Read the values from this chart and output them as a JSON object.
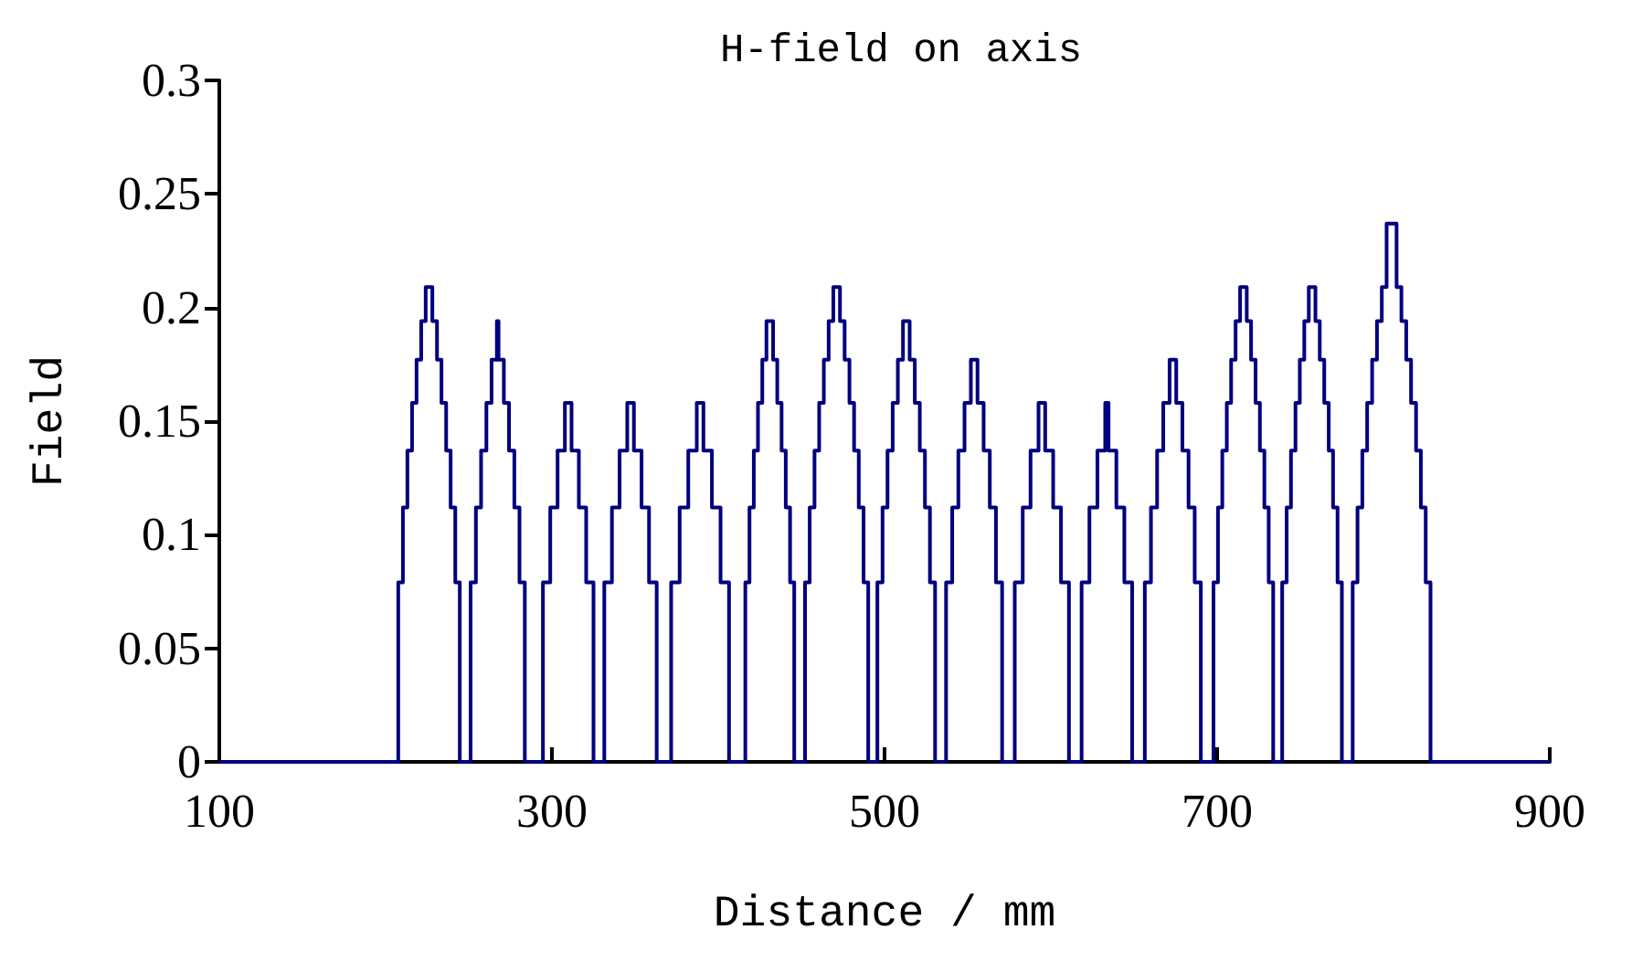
{
  "chart_data": {
    "type": "step",
    "title": "H-field on axis",
    "xlabel": "Distance / mm",
    "ylabel": "Field",
    "xlim": [
      100,
      900
    ],
    "xticks": [
      100,
      300,
      500,
      700,
      900
    ],
    "ylim": [
      0,
      0.3
    ],
    "yticks": [
      0,
      0.05,
      0.1,
      0.15,
      0.2,
      0.25,
      0.3
    ],
    "grid": false,
    "marker": "none",
    "line_style": "solid",
    "series": [
      {
        "color": "#000080",
        "x": [
          100,
          207.6,
          210.4,
          213.1,
          215.9,
          218.6,
          221.4,
          224.1,
          228.1,
          230.9,
          233.6,
          236.4,
          239.1,
          241.9,
          244.6,
          251.1,
          254.3,
          257.4,
          260.6,
          263.7,
          266.9,
          267.9,
          271.1,
          274.2,
          277.4,
          280.5,
          283.7,
          294.6,
          299.0,
          303.4,
          307.8,
          311.8,
          316.2,
          320.6,
          325.0,
          331.5,
          336.1,
          340.7,
          345.3,
          349.3,
          353.9,
          358.4,
          363.0,
          371.7,
          376.8,
          382.0,
          387.1,
          391.1,
          396.2,
          401.4,
          406.5,
          416.3,
          418.8,
          421.4,
          423.9,
          426.5,
          429.0,
          433.0,
          435.5,
          438.1,
          440.6,
          443.2,
          445.7,
          452.2,
          455.0,
          457.9,
          460.7,
          463.5,
          466.4,
          469.2,
          473.2,
          476.0,
          478.9,
          481.7,
          484.5,
          487.4,
          490.2,
          495.7,
          498.8,
          501.8,
          504.9,
          508.0,
          511.1,
          515.1,
          518.2,
          521.2,
          524.3,
          527.3,
          530.4,
          537.0,
          540.7,
          544.4,
          548.1,
          551.9,
          555.9,
          559.6,
          563.3,
          567.0,
          570.7,
          578.3,
          583.1,
          587.8,
          592.6,
          596.6,
          601.4,
          606.1,
          610.9,
          618.5,
          623.2,
          628.0,
          632.7,
          634.7,
          639.4,
          644.2,
          648.9,
          656.5,
          660.2,
          663.9,
          667.6,
          671.4,
          675.4,
          679.1,
          682.8,
          686.5,
          690.2,
          697.8,
          700.5,
          703.1,
          705.8,
          708.4,
          711.1,
          713.8,
          717.8,
          720.4,
          723.1,
          725.7,
          728.4,
          731.0,
          733.7,
          739.1,
          741.8,
          744.4,
          747.1,
          749.7,
          752.4,
          755.1,
          759.1,
          761.7,
          764.4,
          767.1,
          769.7,
          772.4,
          775.0,
          781.5,
          784.4,
          787.3,
          790.2,
          793.2,
          796.1,
          799.0,
          801.9,
          807.9,
          810.8,
          813.7,
          816.6,
          819.6,
          822.5,
          825.4,
          828.3,
          900
        ],
        "values": [
          0,
          0.079,
          0.112,
          0.137,
          0.158,
          0.177,
          0.194,
          0.209,
          0.194,
          0.177,
          0.158,
          0.137,
          0.112,
          0.079,
          0,
          0.079,
          0.112,
          0.137,
          0.158,
          0.177,
          0.194,
          0.177,
          0.158,
          0.137,
          0.112,
          0.079,
          0,
          0.079,
          0.112,
          0.137,
          0.158,
          0.137,
          0.112,
          0.079,
          0,
          0.079,
          0.112,
          0.137,
          0.158,
          0.137,
          0.112,
          0.079,
          0,
          0.079,
          0.112,
          0.137,
          0.158,
          0.137,
          0.112,
          0.079,
          0,
          0.079,
          0.112,
          0.137,
          0.158,
          0.177,
          0.194,
          0.177,
          0.158,
          0.137,
          0.112,
          0.079,
          0,
          0.079,
          0.112,
          0.137,
          0.158,
          0.177,
          0.194,
          0.209,
          0.194,
          0.177,
          0.158,
          0.137,
          0.112,
          0.079,
          0,
          0.079,
          0.112,
          0.137,
          0.158,
          0.177,
          0.194,
          0.177,
          0.158,
          0.137,
          0.112,
          0.079,
          0,
          0.079,
          0.112,
          0.137,
          0.158,
          0.177,
          0.158,
          0.137,
          0.112,
          0.079,
          0,
          0.079,
          0.112,
          0.137,
          0.158,
          0.137,
          0.112,
          0.079,
          0,
          0.079,
          0.112,
          0.137,
          0.158,
          0.137,
          0.112,
          0.079,
          0,
          0.079,
          0.112,
          0.137,
          0.158,
          0.177,
          0.158,
          0.137,
          0.112,
          0.079,
          0,
          0.079,
          0.112,
          0.137,
          0.158,
          0.177,
          0.194,
          0.209,
          0.194,
          0.177,
          0.158,
          0.137,
          0.112,
          0.079,
          0,
          0.079,
          0.112,
          0.137,
          0.158,
          0.177,
          0.194,
          0.209,
          0.194,
          0.177,
          0.158,
          0.137,
          0.112,
          0.079,
          0,
          0.079,
          0.112,
          0.137,
          0.158,
          0.177,
          0.194,
          0.209,
          0.237,
          0.209,
          0.194,
          0.177,
          0.158,
          0.137,
          0.112,
          0.079,
          0,
          0
        ]
      }
    ]
  }
}
